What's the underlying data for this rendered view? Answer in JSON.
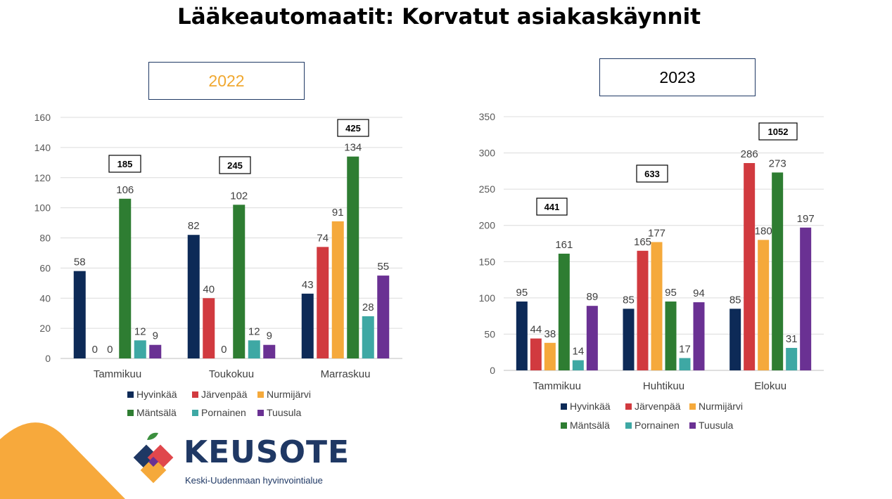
{
  "title": "Lääkeautomaatit: Korvatut asiakaskäynnit",
  "colors": {
    "Hyvinkää": "#0d2a57",
    "Järvenpää": "#d13a3f",
    "Nurmijärvi": "#f5a93b",
    "Mäntsälä": "#2e7d32",
    "Pornainen": "#3ea8a4",
    "Tuusula": "#6a3193"
  },
  "logo": {
    "name": "KEUSOTE",
    "subtitle": "Keski-Uudenmaan hyvinvointialue",
    "icon": "apple-logo-icon"
  },
  "decoration": {
    "corner_color": "#f7a93c"
  },
  "chart_data": [
    {
      "type": "bar",
      "title": "2022",
      "categories": [
        "Tammikuu",
        "Toukokuu",
        "Marraskuu"
      ],
      "ylim": [
        0,
        160
      ],
      "yticks": [
        0,
        20,
        40,
        60,
        80,
        100,
        120,
        140,
        160
      ],
      "grid": true,
      "legend_position": "bottom",
      "totals": [
        185,
        245,
        425
      ],
      "series": [
        {
          "name": "Hyvinkää",
          "values": [
            58,
            82,
            43
          ]
        },
        {
          "name": "Järvenpää",
          "values": [
            0,
            40,
            74
          ]
        },
        {
          "name": "Nurmijärvi",
          "values": [
            0,
            0,
            91
          ]
        },
        {
          "name": "Mäntsälä",
          "values": [
            106,
            102,
            134
          ]
        },
        {
          "name": "Pornainen",
          "values": [
            12,
            12,
            28
          ]
        },
        {
          "name": "Tuusula",
          "values": [
            9,
            9,
            55
          ]
        }
      ]
    },
    {
      "type": "bar",
      "title": "2023",
      "categories": [
        "Tammikuu",
        "Huhtikuu",
        "Elokuu"
      ],
      "ylim": [
        0,
        350
      ],
      "yticks": [
        0,
        50,
        100,
        150,
        200,
        250,
        300,
        350
      ],
      "grid": true,
      "legend_position": "bottom",
      "totals": [
        441,
        633,
        1052
      ],
      "series": [
        {
          "name": "Hyvinkää",
          "values": [
            95,
            85,
            85
          ]
        },
        {
          "name": "Järvenpää",
          "values": [
            44,
            165,
            286
          ]
        },
        {
          "name": "Nurmijärvi",
          "values": [
            38,
            177,
            180
          ]
        },
        {
          "name": "Mäntsälä",
          "values": [
            161,
            95,
            273
          ]
        },
        {
          "name": "Pornainen",
          "values": [
            14,
            17,
            31
          ]
        },
        {
          "name": "Tuusula",
          "values": [
            89,
            94,
            197
          ]
        }
      ]
    }
  ]
}
